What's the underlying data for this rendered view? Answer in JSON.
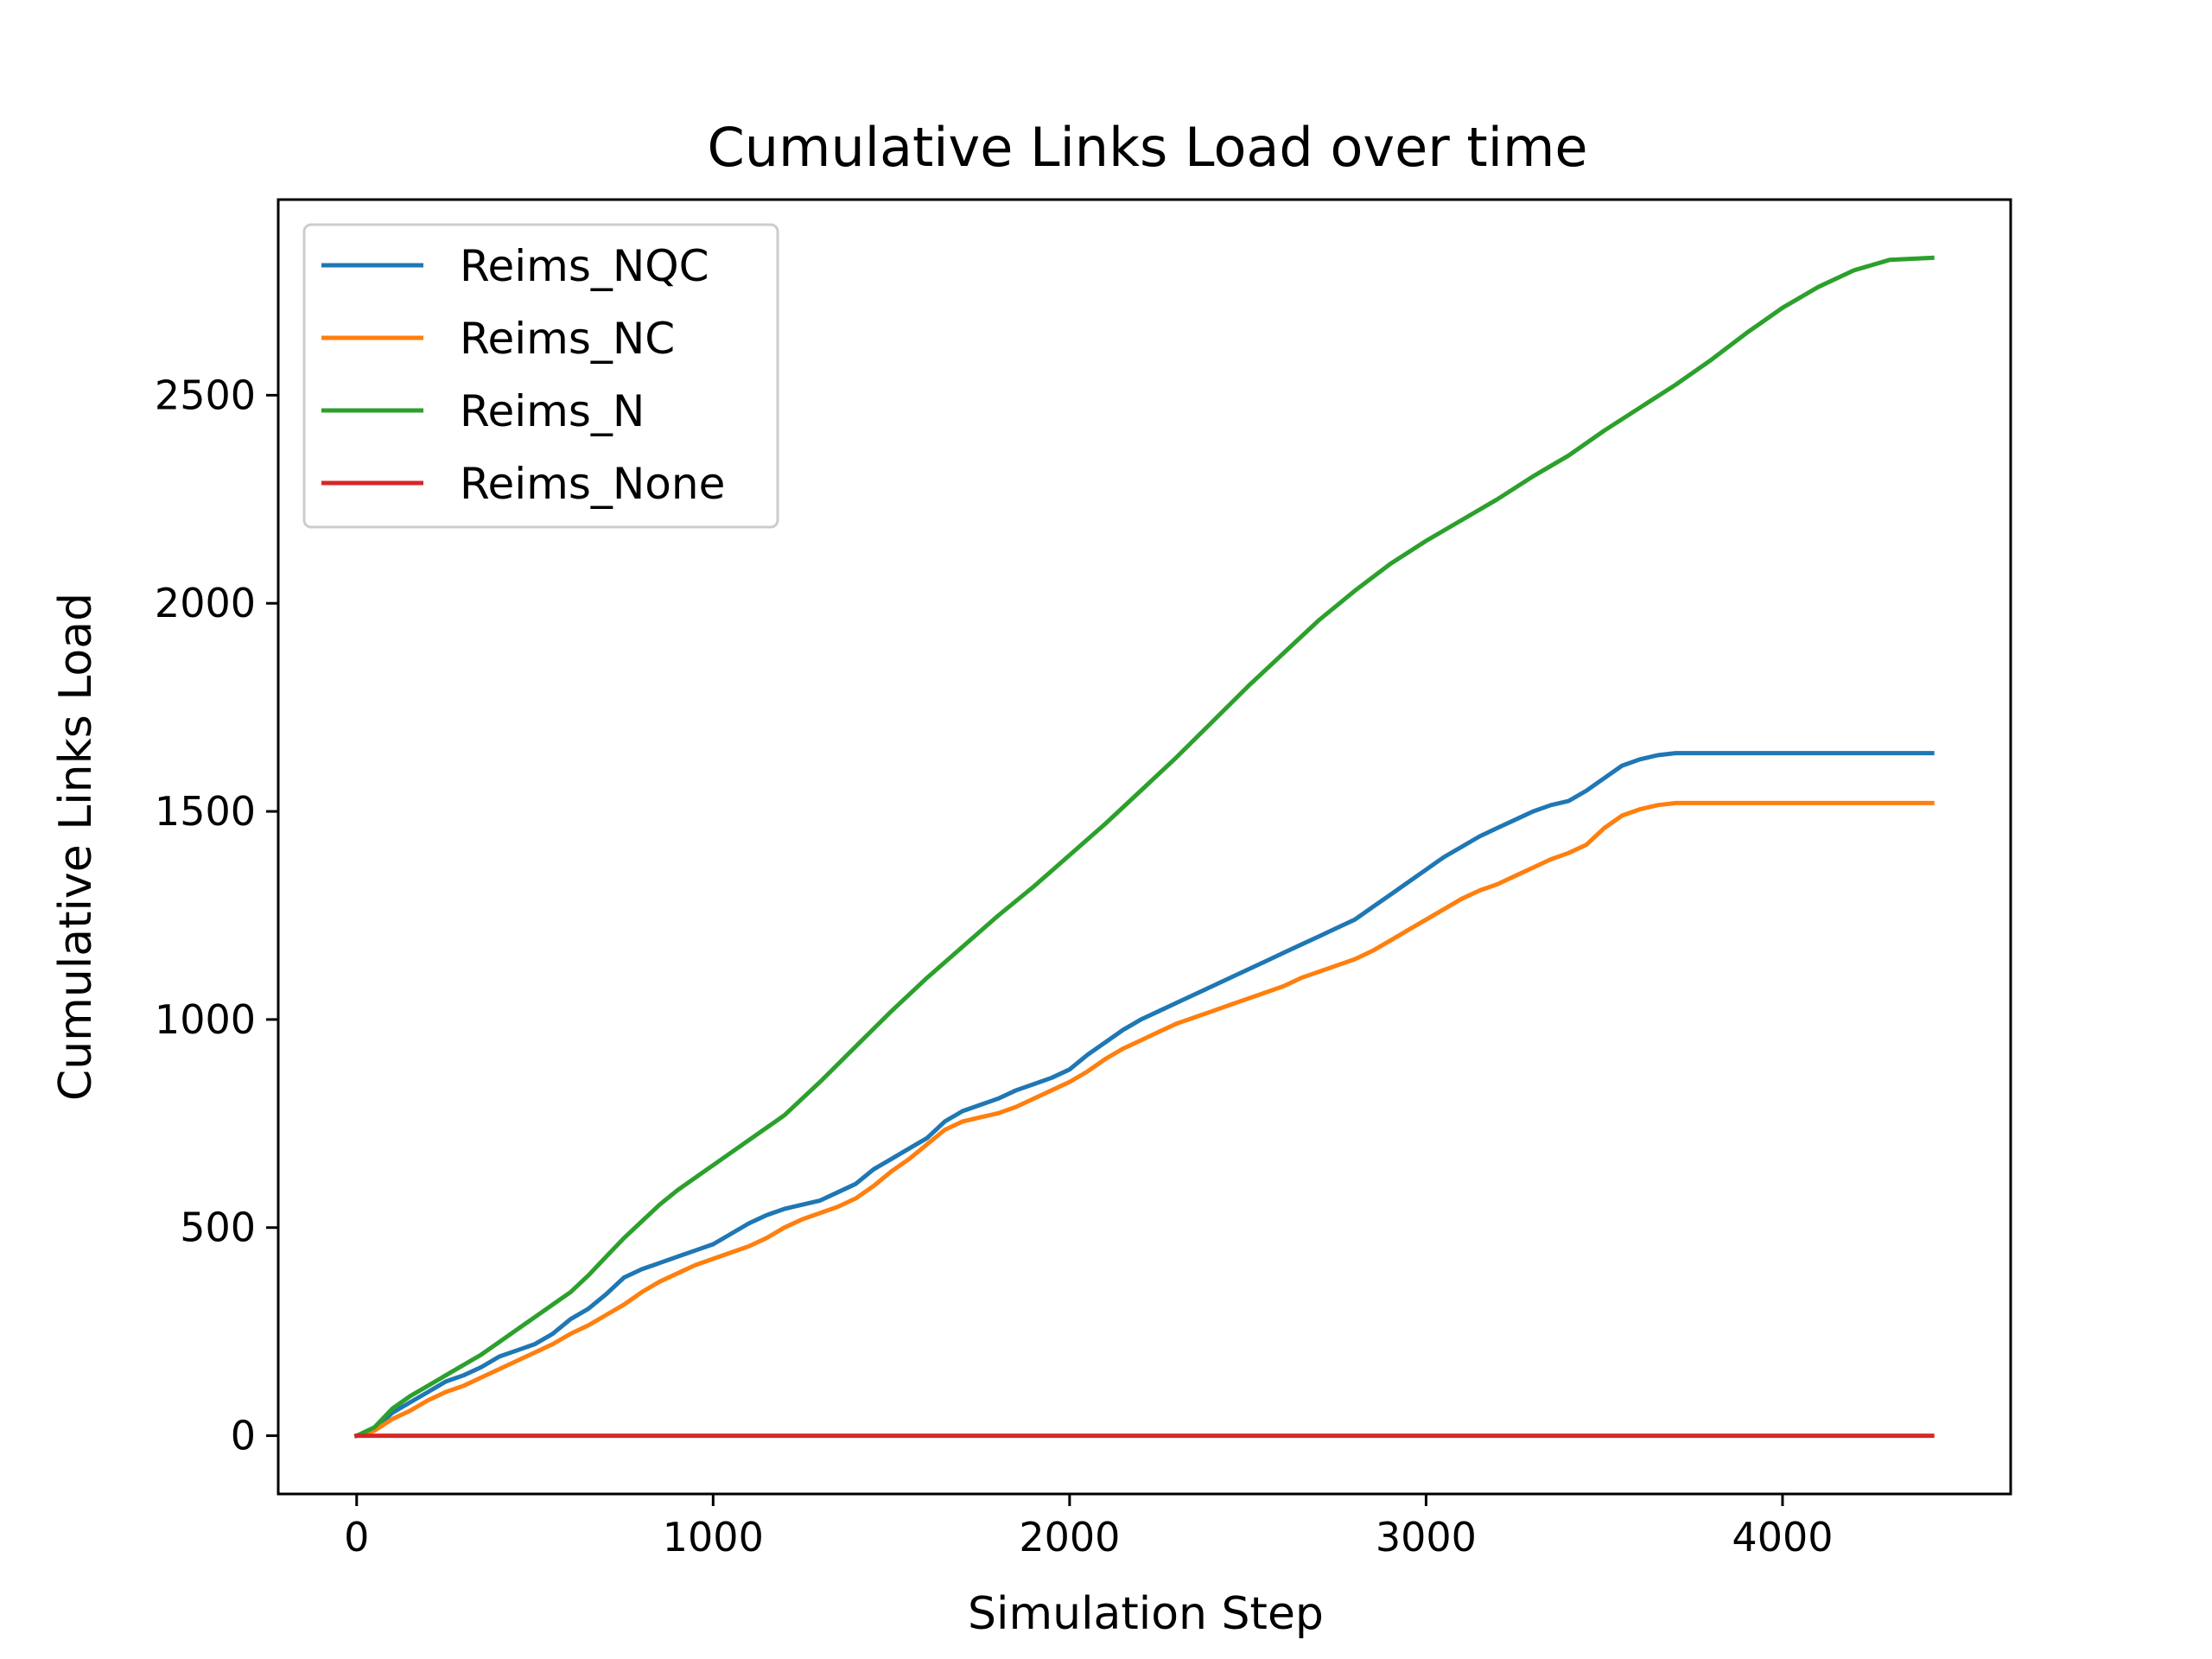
{
  "chart_data": {
    "type": "line",
    "title": "Cumulative Links Load over time",
    "xlabel": "Simulation Step",
    "ylabel": "Cumulative Links Load",
    "xlim": [
      -220,
      4640
    ],
    "ylim": [
      -140,
      2970
    ],
    "xticks": [
      0,
      1000,
      2000,
      3000,
      4000
    ],
    "yticks": [
      0,
      500,
      1000,
      1500,
      2000,
      2500
    ],
    "grid": false,
    "legend_position": "upper-left",
    "series": [
      {
        "name": "Reims_NQC",
        "color": "#1f77b4",
        "x": [
          0,
          50,
          100,
          150,
          200,
          250,
          300,
          350,
          400,
          450,
          500,
          550,
          600,
          650,
          700,
          750,
          800,
          850,
          900,
          950,
          1000,
          1050,
          1100,
          1150,
          1200,
          1250,
          1300,
          1350,
          1400,
          1450,
          1500,
          1550,
          1600,
          1650,
          1700,
          1750,
          1800,
          1850,
          1900,
          1950,
          2000,
          2050,
          2100,
          2150,
          2200,
          2250,
          2300,
          2350,
          2400,
          2450,
          2500,
          2550,
          2600,
          2650,
          2700,
          2750,
          2800,
          2850,
          2900,
          2950,
          3000,
          3050,
          3100,
          3150,
          3200,
          3250,
          3300,
          3350,
          3400,
          3450,
          3500,
          3550,
          3600,
          3650,
          3700,
          3800,
          3900,
          4000,
          4100,
          4200,
          4300,
          4420
        ],
        "y": [
          0,
          15,
          55,
          80,
          105,
          130,
          145,
          165,
          190,
          205,
          220,
          245,
          280,
          305,
          340,
          380,
          400,
          415,
          430,
          445,
          460,
          485,
          510,
          530,
          545,
          555,
          565,
          585,
          605,
          640,
          665,
          690,
          715,
          755,
          780,
          795,
          810,
          830,
          845,
          860,
          880,
          915,
          945,
          975,
          1000,
          1020,
          1040,
          1060,
          1080,
          1100,
          1120,
          1140,
          1160,
          1180,
          1200,
          1220,
          1240,
          1270,
          1300,
          1330,
          1360,
          1390,
          1415,
          1440,
          1460,
          1480,
          1500,
          1515,
          1525,
          1550,
          1580,
          1610,
          1625,
          1635,
          1640,
          1640,
          1640,
          1640,
          1640,
          1640,
          1640,
          1640
        ]
      },
      {
        "name": "Reims_NC",
        "color": "#ff7f0e",
        "x": [
          0,
          50,
          100,
          150,
          200,
          250,
          300,
          350,
          400,
          450,
          500,
          550,
          600,
          650,
          700,
          750,
          800,
          850,
          900,
          950,
          1000,
          1050,
          1100,
          1150,
          1200,
          1250,
          1300,
          1350,
          1400,
          1450,
          1500,
          1550,
          1600,
          1650,
          1700,
          1750,
          1800,
          1850,
          1900,
          1950,
          2000,
          2050,
          2100,
          2150,
          2200,
          2250,
          2300,
          2350,
          2400,
          2450,
          2500,
          2550,
          2600,
          2650,
          2700,
          2750,
          2800,
          2850,
          2900,
          2950,
          3000,
          3050,
          3100,
          3150,
          3200,
          3250,
          3300,
          3350,
          3400,
          3450,
          3500,
          3550,
          3600,
          3650,
          3700,
          3800,
          3900,
          4000,
          4100,
          4200,
          4300,
          4420
        ],
        "y": [
          0,
          12,
          40,
          60,
          85,
          105,
          120,
          140,
          160,
          180,
          200,
          220,
          245,
          265,
          290,
          315,
          345,
          370,
          390,
          410,
          425,
          440,
          455,
          475,
          500,
          520,
          535,
          550,
          570,
          600,
          635,
          665,
          700,
          735,
          755,
          765,
          775,
          790,
          810,
          830,
          850,
          875,
          905,
          930,
          950,
          970,
          990,
          1005,
          1020,
          1035,
          1050,
          1065,
          1080,
          1100,
          1115,
          1130,
          1145,
          1165,
          1190,
          1215,
          1240,
          1265,
          1290,
          1310,
          1325,
          1345,
          1365,
          1385,
          1400,
          1420,
          1460,
          1490,
          1505,
          1515,
          1520,
          1520,
          1520,
          1520,
          1520,
          1520,
          1520,
          1520
        ]
      },
      {
        "name": "Reims_N",
        "color": "#2ca02c",
        "x": [
          0,
          50,
          100,
          150,
          200,
          250,
          300,
          350,
          400,
          450,
          500,
          550,
          600,
          650,
          700,
          750,
          800,
          850,
          900,
          950,
          1000,
          1100,
          1200,
          1300,
          1400,
          1500,
          1600,
          1700,
          1800,
          1900,
          2000,
          2100,
          2200,
          2300,
          2400,
          2500,
          2600,
          2700,
          2800,
          2900,
          3000,
          3100,
          3200,
          3300,
          3400,
          3500,
          3600,
          3700,
          3800,
          3900,
          4000,
          4100,
          4200,
          4300,
          4420
        ],
        "y": [
          0,
          20,
          65,
          95,
          120,
          145,
          170,
          195,
          225,
          255,
          285,
          315,
          345,
          385,
          430,
          475,
          515,
          555,
          590,
          620,
          650,
          710,
          770,
          850,
          935,
          1020,
          1100,
          1175,
          1250,
          1320,
          1395,
          1470,
          1550,
          1630,
          1715,
          1800,
          1880,
          1960,
          2030,
          2095,
          2150,
          2200,
          2250,
          2305,
          2355,
          2415,
          2470,
          2525,
          2585,
          2650,
          2710,
          2760,
          2800,
          2825,
          2830
        ]
      },
      {
        "name": "Reims_None",
        "color": "#d62728",
        "x": [
          0,
          4420
        ],
        "y": [
          0,
          0
        ]
      }
    ]
  }
}
